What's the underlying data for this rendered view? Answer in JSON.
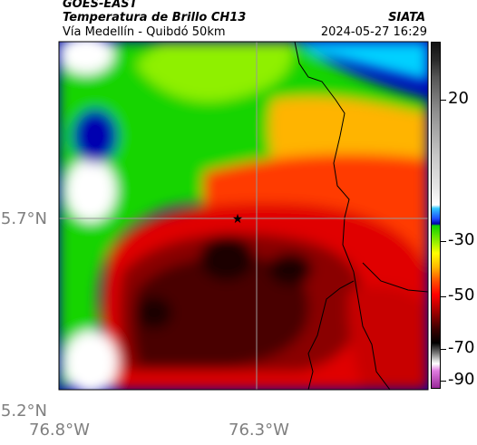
{
  "header": {
    "satellite": "GOES-EAST",
    "product": "Temperatura de Brillo CH13",
    "organization": "SIATA",
    "region": "Vía Medellín - Quibdó 50km",
    "timestamp": "2024-05-27 16:29"
  },
  "axes": {
    "lat_labels": [
      "5.7°N",
      "5.2°N"
    ],
    "lon_labels": [
      "76.8°W",
      "76.3°W"
    ]
  },
  "colorbar": {
    "tick_labels": [
      "20",
      "-30",
      "-50",
      "-70",
      "-90"
    ]
  },
  "colors": {
    "cold_core": "#1c0000",
    "deep_red": "#e00000",
    "green": "#18d400",
    "deep_blue": "#0000b0"
  },
  "icons": [
    "star-marker-icon"
  ]
}
